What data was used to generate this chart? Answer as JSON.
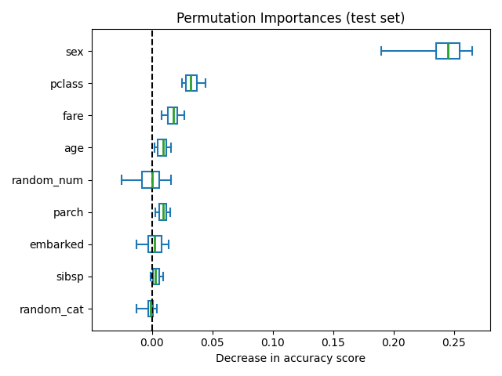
{
  "title": "Permutation Importances (test set)",
  "xlabel": "Decrease in accuracy score",
  "features": [
    "sex",
    "pclass",
    "fare",
    "age",
    "random_num",
    "parch",
    "embarked",
    "sibsp",
    "random_cat"
  ],
  "box_data": {
    "sex": {
      "whislo": 0.19,
      "q1": 0.235,
      "med": 0.245,
      "q3": 0.255,
      "whishi": 0.265
    },
    "pclass": {
      "whislo": 0.025,
      "q1": 0.028,
      "med": 0.032,
      "q3": 0.037,
      "whishi": 0.044
    },
    "fare": {
      "whislo": 0.008,
      "q1": 0.013,
      "med": 0.018,
      "q3": 0.021,
      "whishi": 0.027
    },
    "age": {
      "whislo": 0.002,
      "q1": 0.005,
      "med": 0.009,
      "q3": 0.012,
      "whishi": 0.016
    },
    "random_num": {
      "whislo": -0.025,
      "q1": -0.008,
      "med": 0.0,
      "q3": 0.006,
      "whishi": 0.016
    },
    "parch": {
      "whislo": 0.003,
      "q1": 0.006,
      "med": 0.009,
      "q3": 0.012,
      "whishi": 0.015
    },
    "embarked": {
      "whislo": -0.013,
      "q1": -0.003,
      "med": 0.002,
      "q3": 0.008,
      "whishi": 0.014
    },
    "sibsp": {
      "whislo": -0.001,
      "q1": 0.001,
      "med": 0.003,
      "q3": 0.006,
      "whishi": 0.009
    },
    "random_cat": {
      "whislo": -0.013,
      "q1": -0.003,
      "med": -0.001,
      "q3": 0.001,
      "whishi": 0.004
    }
  },
  "box_color": "#1f77b4",
  "median_color": "#2ca02c",
  "dashed_line_x": 0.0,
  "xlim": [
    -0.05,
    0.28
  ],
  "xticks": [
    0.0,
    0.05,
    0.1,
    0.15,
    0.2,
    0.25
  ],
  "figsize": [
    6.4,
    4.8
  ],
  "dpi": 100
}
